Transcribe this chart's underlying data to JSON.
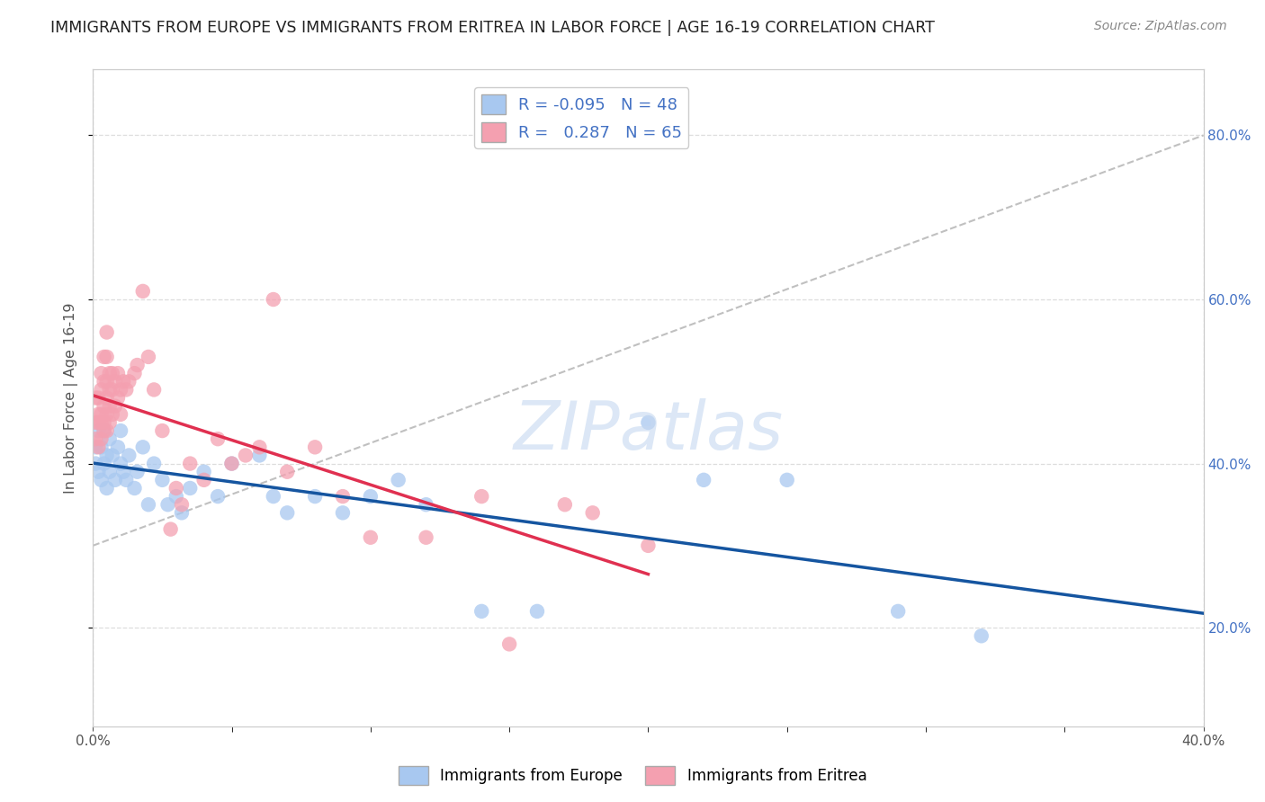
{
  "title": "IMMIGRANTS FROM EUROPE VS IMMIGRANTS FROM ERITREA IN LABOR FORCE | AGE 16-19 CORRELATION CHART",
  "source": "Source: ZipAtlas.com",
  "ylabel": "In Labor Force | Age 16-19",
  "x_min": 0.0,
  "x_max": 0.4,
  "y_min": 0.08,
  "y_max": 0.88,
  "y_ticks": [
    0.2,
    0.4,
    0.6,
    0.8
  ],
  "europe_color": "#A8C8F0",
  "eritrea_color": "#F4A0B0",
  "europe_line_color": "#1555A0",
  "eritrea_line_color": "#E03050",
  "legend_R_europe": "-0.095",
  "legend_N_europe": "48",
  "legend_R_eritrea": "0.287",
  "legend_N_eritrea": "65",
  "watermark": "ZIPatlas",
  "background_color": "#FFFFFF",
  "grid_color": "#DDDDDD",
  "europe_scatter_x": [
    0.001,
    0.001,
    0.002,
    0.002,
    0.003,
    0.003,
    0.004,
    0.004,
    0.005,
    0.005,
    0.006,
    0.006,
    0.007,
    0.008,
    0.009,
    0.01,
    0.01,
    0.011,
    0.012,
    0.013,
    0.015,
    0.016,
    0.018,
    0.02,
    0.022,
    0.025,
    0.027,
    0.03,
    0.032,
    0.035,
    0.04,
    0.045,
    0.05,
    0.06,
    0.065,
    0.07,
    0.08,
    0.09,
    0.1,
    0.11,
    0.12,
    0.14,
    0.16,
    0.2,
    0.22,
    0.25,
    0.29,
    0.32
  ],
  "europe_scatter_y": [
    0.4,
    0.42,
    0.39,
    0.44,
    0.38,
    0.42,
    0.4,
    0.44,
    0.37,
    0.41,
    0.39,
    0.43,
    0.41,
    0.38,
    0.42,
    0.4,
    0.44,
    0.39,
    0.38,
    0.41,
    0.37,
    0.39,
    0.42,
    0.35,
    0.4,
    0.38,
    0.35,
    0.36,
    0.34,
    0.37,
    0.39,
    0.36,
    0.4,
    0.41,
    0.36,
    0.34,
    0.36,
    0.34,
    0.36,
    0.38,
    0.35,
    0.22,
    0.22,
    0.45,
    0.38,
    0.38,
    0.22,
    0.19
  ],
  "eritrea_scatter_x": [
    0.001,
    0.001,
    0.001,
    0.002,
    0.002,
    0.002,
    0.002,
    0.003,
    0.003,
    0.003,
    0.003,
    0.003,
    0.004,
    0.004,
    0.004,
    0.004,
    0.004,
    0.005,
    0.005,
    0.005,
    0.005,
    0.005,
    0.005,
    0.006,
    0.006,
    0.006,
    0.006,
    0.007,
    0.007,
    0.007,
    0.008,
    0.008,
    0.009,
    0.009,
    0.01,
    0.01,
    0.011,
    0.012,
    0.013,
    0.015,
    0.016,
    0.018,
    0.02,
    0.022,
    0.025,
    0.028,
    0.03,
    0.032,
    0.035,
    0.04,
    0.045,
    0.05,
    0.055,
    0.06,
    0.065,
    0.07,
    0.08,
    0.09,
    0.1,
    0.12,
    0.14,
    0.15,
    0.17,
    0.18,
    0.2
  ],
  "eritrea_scatter_y": [
    0.43,
    0.45,
    0.48,
    0.42,
    0.45,
    0.46,
    0.48,
    0.43,
    0.45,
    0.46,
    0.49,
    0.51,
    0.44,
    0.45,
    0.47,
    0.5,
    0.53,
    0.44,
    0.46,
    0.48,
    0.5,
    0.53,
    0.56,
    0.45,
    0.47,
    0.49,
    0.51,
    0.46,
    0.49,
    0.51,
    0.47,
    0.5,
    0.48,
    0.51,
    0.46,
    0.49,
    0.5,
    0.49,
    0.5,
    0.51,
    0.52,
    0.61,
    0.53,
    0.49,
    0.44,
    0.32,
    0.37,
    0.35,
    0.4,
    0.38,
    0.43,
    0.4,
    0.41,
    0.42,
    0.6,
    0.39,
    0.42,
    0.36,
    0.31,
    0.31,
    0.36,
    0.18,
    0.35,
    0.34,
    0.3
  ]
}
